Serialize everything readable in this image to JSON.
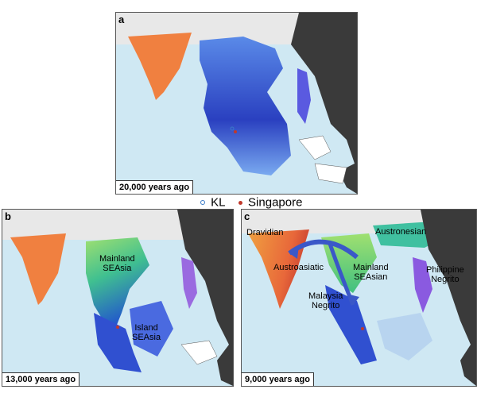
{
  "panels": [
    {
      "id": "a",
      "label": "a",
      "age": "20,000 years ago"
    },
    {
      "id": "b",
      "label": "b",
      "age": "13,000 years ago",
      "regions": [
        "Mainland\nSEAsia",
        "Island\nSEAsia"
      ]
    },
    {
      "id": "c",
      "label": "c",
      "age": "9,000 years ago",
      "regions": [
        "Dravidian",
        "Austronesian",
        "Austroasiatic",
        "Mainland\nSEAsian",
        "Philippine\nNegrito",
        "Malaysia\nNegrito"
      ]
    }
  ],
  "legend": {
    "kl_label": "KL",
    "singapore_label": "Singapore",
    "kl_color": "#3a7bc8",
    "singapore_color": "#c0392b"
  },
  "colors": {
    "sea": "#cfe8f3",
    "land_dark": "#3a3a3a",
    "ice": "#e8e8e8",
    "india": "#f08040",
    "south_asian_orange": "#e8683a"
  }
}
